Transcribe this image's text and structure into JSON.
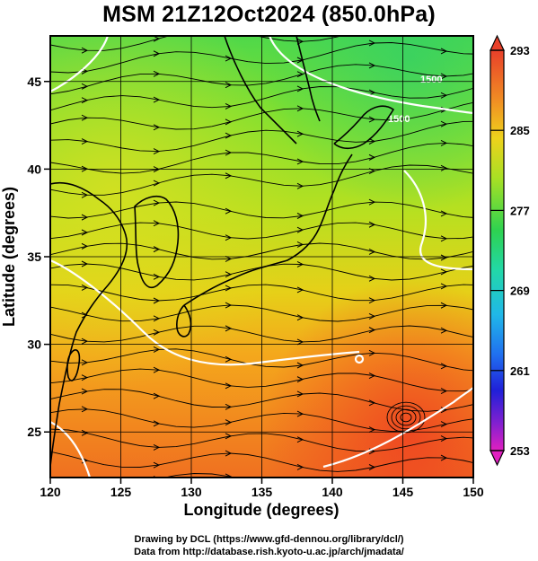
{
  "title": "MSM 21Z12Oct2024 (850.0hPa)",
  "footer": {
    "line1": "Drawing by DCL (https://www.gfd-dennou.org/library/dcl/)",
    "line2": "Data from http://database.rish.kyoto-u.ac.jp/arch/jmadata/"
  },
  "map": {
    "xlabel": "Longitude (degrees)",
    "ylabel": "Latitude  (degrees)",
    "lon_range": [
      120,
      150
    ],
    "lat_range": [
      22.4,
      47.6
    ],
    "lon_ticks": [
      120,
      125,
      130,
      135,
      140,
      145,
      150
    ],
    "lat_ticks": [
      25,
      30,
      35,
      40,
      45
    ],
    "lon_tick_labels": [
      "120",
      "125",
      "130",
      "135",
      "140",
      "145",
      "150"
    ],
    "lat_tick_labels": [
      "25",
      "30",
      "35",
      "40",
      "45"
    ],
    "contour_labels": [
      "1500",
      "1500"
    ]
  },
  "colorbar": {
    "labels": [
      "293",
      "285",
      "277",
      "269",
      "261",
      "253"
    ],
    "values": [
      293,
      285,
      277,
      269,
      261,
      253
    ],
    "min": 253,
    "max": 293
  }
}
